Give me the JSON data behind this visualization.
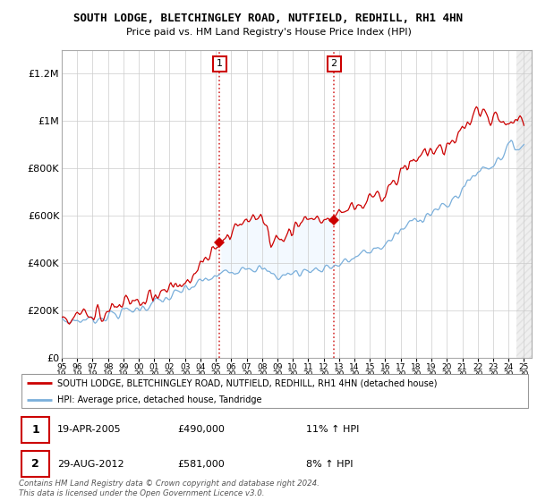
{
  "title": "SOUTH LODGE, BLETCHINGLEY ROAD, NUTFIELD, REDHILL, RH1 4HN",
  "subtitle": "Price paid vs. HM Land Registry's House Price Index (HPI)",
  "legend_line1": "SOUTH LODGE, BLETCHINGLEY ROAD, NUTFIELD, REDHILL, RH1 4HN (detached house)",
  "legend_line2": "HPI: Average price, detached house, Tandridge",
  "annotation1_label": "1",
  "annotation1_date": "19-APR-2005",
  "annotation1_price": "£490,000",
  "annotation1_hpi": "11% ↑ HPI",
  "annotation2_label": "2",
  "annotation2_date": "29-AUG-2012",
  "annotation2_price": "£581,000",
  "annotation2_hpi": "8% ↑ HPI",
  "footnote": "Contains HM Land Registry data © Crown copyright and database right 2024.\nThis data is licensed under the Open Government Licence v3.0.",
  "sale1_year": 2005.29,
  "sale1_price": 490000,
  "sale2_year": 2012.66,
  "sale2_price": 581000,
  "line_color_price": "#cc0000",
  "line_color_hpi": "#7aafdb",
  "shaded_color": "#ddeeff",
  "background_color": "#ffffff",
  "ylim": [
    0,
    1300000
  ],
  "yticks": [
    0,
    200000,
    400000,
    600000,
    800000,
    1000000,
    1200000
  ],
  "ytick_labels": [
    "£0",
    "£200K",
    "£400K",
    "£600K",
    "£800K",
    "£1M",
    "£1.2M"
  ],
  "xlim_start": 1995,
  "xlim_end": 2025.5,
  "future_start": 2024.5
}
